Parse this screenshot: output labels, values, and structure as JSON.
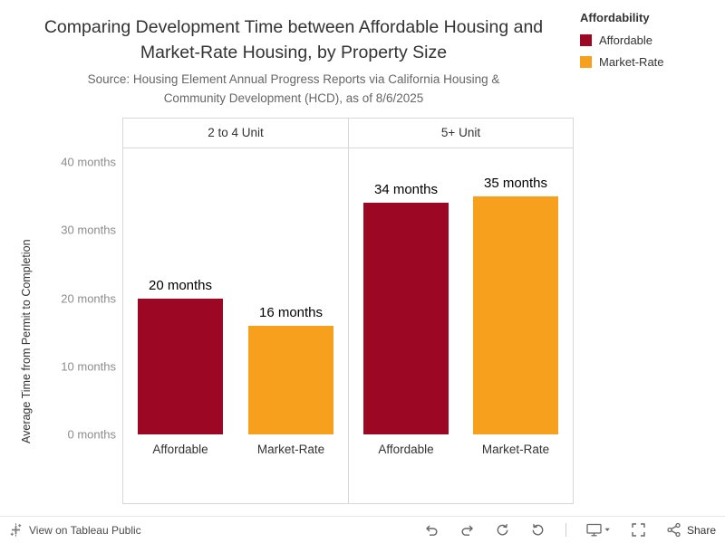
{
  "header": {
    "title_lines": [
      "Comparing Development Time between Affordable Housing and",
      "Market-Rate Housing, by Property Size"
    ],
    "source_lines": [
      "Source: Housing Element Annual Progress Reports via California Housing &",
      "Community Development (HCD), as of 8/6/2025"
    ]
  },
  "legend": {
    "title": "Affordability",
    "items": [
      {
        "label": "Affordable",
        "color": "#9C0824"
      },
      {
        "label": "Market-Rate",
        "color": "#F6A01D"
      }
    ]
  },
  "chart_data": {
    "type": "bar",
    "title": "Comparing Development Time between Affordable Housing and Market-Rate Housing, by Property Size",
    "subtitle": "Source: Housing Element Annual Progress Reports via California Housing & Community Development (HCD), as of 8/6/2025",
    "ylabel": "Average Time from Permit to Completion",
    "ylim": [
      0,
      40
    ],
    "yticks": [
      0,
      10,
      20,
      30,
      40
    ],
    "ytick_labels": [
      "0 months",
      "10 months",
      "20 months",
      "30 months",
      "40 months"
    ],
    "unit": "months",
    "grid": false,
    "legend_position": "top-right",
    "panels": [
      {
        "label": "2 to 4 Unit",
        "categories": [
          "Affordable",
          "Market-Rate"
        ],
        "values": [
          20,
          16
        ],
        "value_labels": [
          "20 months",
          "16 months"
        ],
        "colors": [
          "#9C0824",
          "#F6A01D"
        ]
      },
      {
        "label": "5+ Unit",
        "categories": [
          "Affordable",
          "Market-Rate"
        ],
        "values": [
          34,
          35
        ],
        "value_labels": [
          "34 months",
          "35 months"
        ],
        "colors": [
          "#9C0824",
          "#F6A01D"
        ]
      }
    ]
  },
  "footer": {
    "view_label": "View on Tableau Public",
    "share_label": "Share"
  }
}
